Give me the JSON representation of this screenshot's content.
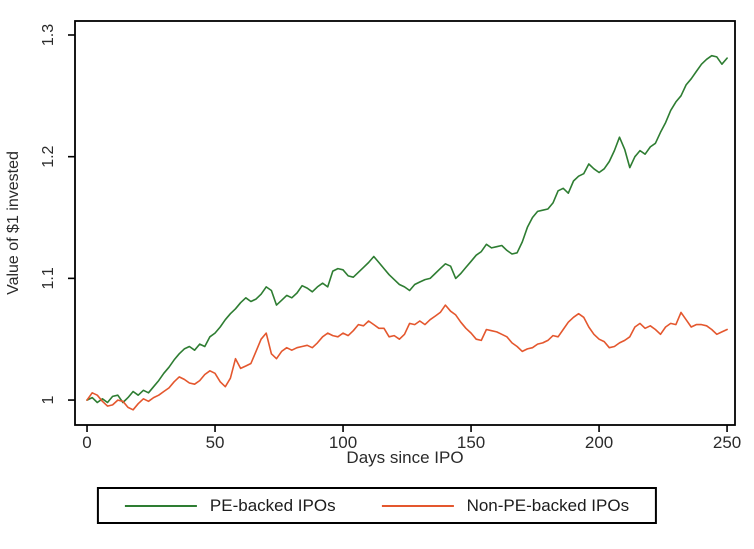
{
  "chart_data": {
    "type": "line",
    "title": "",
    "xlabel": "Days since IPO",
    "ylabel": "Value of $1 invested",
    "grid": false,
    "legend_position": "bottom-center",
    "axis_color": "#000000",
    "text_color": "#2b2b2b",
    "xlim": [
      -4.7,
      253.1
    ],
    "ylim": [
      0.9795,
      1.3115
    ],
    "xticks": [
      0,
      50,
      100,
      150,
      200,
      250
    ],
    "xtick_labels": [
      "0",
      "50",
      "100",
      "150",
      "200",
      "250"
    ],
    "yticks": [
      1,
      1.1,
      1.2,
      1.3
    ],
    "ytick_labels": [
      "1",
      "1.1",
      "1.2",
      "1.3"
    ],
    "x": [
      0,
      2,
      4,
      6,
      8,
      10,
      12,
      14,
      16,
      18,
      20,
      22,
      24,
      26,
      28,
      30,
      32,
      34,
      36,
      38,
      40,
      42,
      44,
      46,
      48,
      50,
      52,
      54,
      56,
      58,
      60,
      62,
      64,
      66,
      68,
      70,
      72,
      74,
      76,
      78,
      80,
      82,
      84,
      86,
      88,
      90,
      92,
      94,
      96,
      98,
      100,
      102,
      104,
      106,
      108,
      110,
      112,
      114,
      116,
      118,
      120,
      122,
      124,
      126,
      128,
      130,
      132,
      134,
      136,
      138,
      140,
      142,
      144,
      146,
      148,
      150,
      152,
      154,
      156,
      158,
      160,
      162,
      164,
      166,
      168,
      170,
      172,
      174,
      176,
      178,
      180,
      182,
      184,
      186,
      188,
      190,
      192,
      194,
      196,
      198,
      200,
      202,
      204,
      206,
      208,
      210,
      212,
      214,
      216,
      218,
      220,
      222,
      224,
      226,
      228,
      230,
      232,
      234,
      236,
      238,
      240,
      242,
      244,
      246,
      248,
      250
    ],
    "series": [
      {
        "name": "PE-backed IPOs",
        "color": "#2e7d32",
        "values": [
          1.0,
          1.002,
          0.998,
          1.001,
          0.998,
          1.003,
          1.004,
          0.998,
          1.002,
          1.007,
          1.004,
          1.008,
          1.006,
          1.011,
          1.016,
          1.022,
          1.027,
          1.033,
          1.038,
          1.042,
          1.044,
          1.041,
          1.046,
          1.044,
          1.052,
          1.055,
          1.06,
          1.066,
          1.071,
          1.075,
          1.08,
          1.084,
          1.081,
          1.083,
          1.087,
          1.093,
          1.09,
          1.078,
          1.082,
          1.086,
          1.084,
          1.088,
          1.094,
          1.092,
          1.089,
          1.093,
          1.096,
          1.093,
          1.106,
          1.108,
          1.107,
          1.102,
          1.101,
          1.105,
          1.109,
          1.113,
          1.118,
          1.113,
          1.108,
          1.103,
          1.099,
          1.095,
          1.093,
          1.09,
          1.095,
          1.097,
          1.099,
          1.1,
          1.104,
          1.108,
          1.112,
          1.11,
          1.1,
          1.104,
          1.109,
          1.114,
          1.119,
          1.122,
          1.128,
          1.125,
          1.126,
          1.127,
          1.123,
          1.12,
          1.121,
          1.13,
          1.142,
          1.15,
          1.155,
          1.156,
          1.157,
          1.162,
          1.172,
          1.174,
          1.17,
          1.18,
          1.184,
          1.186,
          1.194,
          1.19,
          1.187,
          1.19,
          1.196,
          1.205,
          1.216,
          1.206,
          1.191,
          1.2,
          1.205,
          1.202,
          1.208,
          1.211,
          1.22,
          1.228,
          1.238,
          1.245,
          1.25,
          1.259,
          1.264,
          1.27,
          1.276,
          1.28,
          1.283,
          1.282,
          1.276,
          1.281
        ]
      },
      {
        "name": "Non-PE-backed IPOs",
        "color": "#e4572e",
        "values": [
          1.0,
          1.006,
          1.004,
          0.999,
          0.995,
          0.996,
          1.0,
          0.999,
          0.994,
          0.992,
          0.997,
          1.001,
          0.999,
          1.002,
          1.004,
          1.007,
          1.01,
          1.015,
          1.019,
          1.017,
          1.014,
          1.013,
          1.016,
          1.021,
          1.024,
          1.022,
          1.015,
          1.011,
          1.018,
          1.034,
          1.026,
          1.028,
          1.03,
          1.04,
          1.05,
          1.055,
          1.038,
          1.034,
          1.04,
          1.043,
          1.041,
          1.043,
          1.044,
          1.045,
          1.043,
          1.047,
          1.052,
          1.055,
          1.053,
          1.052,
          1.055,
          1.053,
          1.057,
          1.062,
          1.061,
          1.065,
          1.062,
          1.059,
          1.059,
          1.052,
          1.053,
          1.05,
          1.054,
          1.063,
          1.062,
          1.065,
          1.062,
          1.066,
          1.069,
          1.072,
          1.078,
          1.073,
          1.07,
          1.064,
          1.059,
          1.055,
          1.05,
          1.049,
          1.058,
          1.057,
          1.056,
          1.054,
          1.052,
          1.047,
          1.044,
          1.04,
          1.042,
          1.043,
          1.046,
          1.047,
          1.049,
          1.053,
          1.052,
          1.058,
          1.064,
          1.068,
          1.071,
          1.068,
          1.06,
          1.054,
          1.05,
          1.048,
          1.043,
          1.044,
          1.047,
          1.049,
          1.052,
          1.06,
          1.063,
          1.059,
          1.061,
          1.058,
          1.054,
          1.06,
          1.063,
          1.062,
          1.072,
          1.066,
          1.06,
          1.062,
          1.062,
          1.061,
          1.058,
          1.054,
          1.056,
          1.058
        ]
      }
    ]
  }
}
